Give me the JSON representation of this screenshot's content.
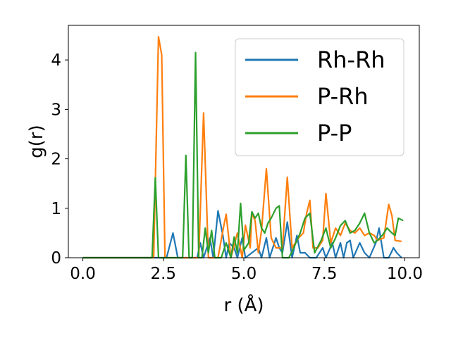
{
  "chart_data": {
    "type": "line",
    "title": "",
    "xlabel": "r (Å)",
    "ylabel": "g(r)",
    "xlim": [
      -0.45,
      10.45
    ],
    "ylim": [
      0,
      4.7
    ],
    "xticks": [
      0.0,
      2.5,
      5.0,
      7.5,
      10.0
    ],
    "xtick_labels": [
      "0.0",
      "2.5",
      "5.0",
      "7.5",
      "10.0"
    ],
    "yticks": [
      0,
      1,
      2,
      3,
      4
    ],
    "ytick_labels": [
      "0",
      "1",
      "2",
      "3",
      "4"
    ],
    "grid": false,
    "legend_position": "top-right",
    "series": [
      {
        "name": "Rh-Rh",
        "color": "#1f77b4",
        "points": [
          [
            0.0,
            0
          ],
          [
            2.6,
            0
          ],
          [
            2.8,
            0.5
          ],
          [
            2.95,
            0
          ],
          [
            3.55,
            0
          ],
          [
            3.65,
            0.3
          ],
          [
            3.75,
            0
          ],
          [
            3.95,
            0.4
          ],
          [
            4.05,
            0
          ],
          [
            4.2,
            0.95
          ],
          [
            4.35,
            0.45
          ],
          [
            4.45,
            0
          ],
          [
            4.55,
            0.3
          ],
          [
            4.7,
            0.2
          ],
          [
            4.8,
            0
          ],
          [
            4.95,
            0.4
          ],
          [
            5.05,
            0
          ],
          [
            5.45,
            0.2
          ],
          [
            5.55,
            0
          ],
          [
            5.7,
            0.4
          ],
          [
            5.8,
            0
          ],
          [
            6.0,
            0.4
          ],
          [
            6.1,
            0.2
          ],
          [
            6.2,
            0.1
          ],
          [
            6.35,
            0.72
          ],
          [
            6.5,
            0
          ],
          [
            6.65,
            0.45
          ],
          [
            6.75,
            0.1
          ],
          [
            6.9,
            0.1
          ],
          [
            7.05,
            0
          ],
          [
            7.25,
            0
          ],
          [
            7.45,
            0.2
          ],
          [
            7.55,
            0
          ],
          [
            7.75,
            0.3
          ],
          [
            7.85,
            0
          ],
          [
            8.0,
            0.3
          ],
          [
            8.1,
            0
          ],
          [
            8.2,
            0.3
          ],
          [
            8.3,
            0.35
          ],
          [
            8.4,
            0
          ],
          [
            8.6,
            0.3
          ],
          [
            8.75,
            0.1
          ],
          [
            8.9,
            0
          ],
          [
            9.1,
            0.3
          ],
          [
            9.2,
            0.6
          ],
          [
            9.35,
            0
          ],
          [
            9.5,
            0
          ],
          [
            9.65,
            0.2
          ],
          [
            9.75,
            0.1
          ],
          [
            9.9,
            0
          ]
        ]
      },
      {
        "name": "P-Rh",
        "color": "#ff7f0e",
        "points": [
          [
            0.0,
            0
          ],
          [
            2.2,
            0
          ],
          [
            2.35,
            4.47
          ],
          [
            2.45,
            4.1
          ],
          [
            2.55,
            0
          ],
          [
            3.6,
            0
          ],
          [
            3.75,
            2.93
          ],
          [
            3.9,
            0
          ],
          [
            4.2,
            0
          ],
          [
            4.35,
            0.55
          ],
          [
            4.45,
            0.88
          ],
          [
            4.6,
            0
          ],
          [
            4.8,
            0.5
          ],
          [
            4.95,
            0
          ],
          [
            5.05,
            0.66
          ],
          [
            5.2,
            0.2
          ],
          [
            5.25,
            0.9
          ],
          [
            5.35,
            0.75
          ],
          [
            5.45,
            0.1
          ],
          [
            5.55,
            0.55
          ],
          [
            5.7,
            1.8
          ],
          [
            5.85,
            0.4
          ],
          [
            6.0,
            0.2
          ],
          [
            6.2,
            0.2
          ],
          [
            6.35,
            1.63
          ],
          [
            6.5,
            0.2
          ],
          [
            6.7,
            0.4
          ],
          [
            6.85,
            0.5
          ],
          [
            6.95,
            0.9
          ],
          [
            7.05,
            1.16
          ],
          [
            7.15,
            0.2
          ],
          [
            7.3,
            0.2
          ],
          [
            7.45,
            0.35
          ],
          [
            7.55,
            1.3
          ],
          [
            7.7,
            0.3
          ],
          [
            7.85,
            0.6
          ],
          [
            8.0,
            0.45
          ],
          [
            8.15,
            0.7
          ],
          [
            8.3,
            0.55
          ],
          [
            8.45,
            0.5
          ],
          [
            8.6,
            0.6
          ],
          [
            8.75,
            0.45
          ],
          [
            8.9,
            0.5
          ],
          [
            9.05,
            0.45
          ],
          [
            9.15,
            0.35
          ],
          [
            9.35,
            0.4
          ],
          [
            9.5,
            1.08
          ],
          [
            9.6,
            0.85
          ],
          [
            9.7,
            0.35
          ],
          [
            9.9,
            0.33
          ]
        ]
      },
      {
        "name": "P-P",
        "color": "#2ca02c",
        "points": [
          [
            0.0,
            0
          ],
          [
            2.15,
            0
          ],
          [
            2.25,
            1.62
          ],
          [
            2.35,
            0
          ],
          [
            3.1,
            0
          ],
          [
            3.2,
            2.07
          ],
          [
            3.3,
            0
          ],
          [
            3.4,
            0
          ],
          [
            3.5,
            4.15
          ],
          [
            3.6,
            0
          ],
          [
            3.7,
            0
          ],
          [
            3.8,
            0.6
          ],
          [
            3.9,
            0.1
          ],
          [
            4.0,
            0.55
          ],
          [
            4.1,
            0
          ],
          [
            4.3,
            0
          ],
          [
            4.45,
            0.3
          ],
          [
            4.6,
            0
          ],
          [
            4.7,
            0.42
          ],
          [
            4.8,
            0.1
          ],
          [
            4.9,
            1.1
          ],
          [
            5.0,
            0.15
          ],
          [
            5.15,
            0.3
          ],
          [
            5.25,
            0.93
          ],
          [
            5.35,
            0.8
          ],
          [
            5.45,
            0.9
          ],
          [
            5.55,
            0.6
          ],
          [
            5.65,
            0.5
          ],
          [
            5.75,
            0.7
          ],
          [
            5.85,
            0.8
          ],
          [
            6.0,
            1.0
          ],
          [
            6.1,
            1.05
          ],
          [
            6.2,
            0
          ],
          [
            6.4,
            0
          ],
          [
            6.55,
            0.2
          ],
          [
            6.65,
            0.35
          ],
          [
            6.75,
            0.5
          ],
          [
            6.9,
            0.8
          ],
          [
            7.05,
            0.9
          ],
          [
            7.2,
            0.1
          ],
          [
            7.4,
            0.35
          ],
          [
            7.55,
            0.6
          ],
          [
            7.7,
            0.2
          ],
          [
            7.85,
            0.4
          ],
          [
            8.0,
            0.65
          ],
          [
            8.15,
            0.75
          ],
          [
            8.3,
            0.5
          ],
          [
            8.45,
            0.55
          ],
          [
            8.6,
            0.7
          ],
          [
            8.75,
            0.9
          ],
          [
            8.9,
            0.5
          ],
          [
            9.05,
            0.3
          ],
          [
            9.15,
            0.35
          ],
          [
            9.3,
            0.45
          ],
          [
            9.45,
            0.6
          ],
          [
            9.6,
            0.5
          ],
          [
            9.7,
            0.45
          ],
          [
            9.8,
            0.8
          ],
          [
            9.95,
            0.75
          ]
        ]
      }
    ]
  }
}
